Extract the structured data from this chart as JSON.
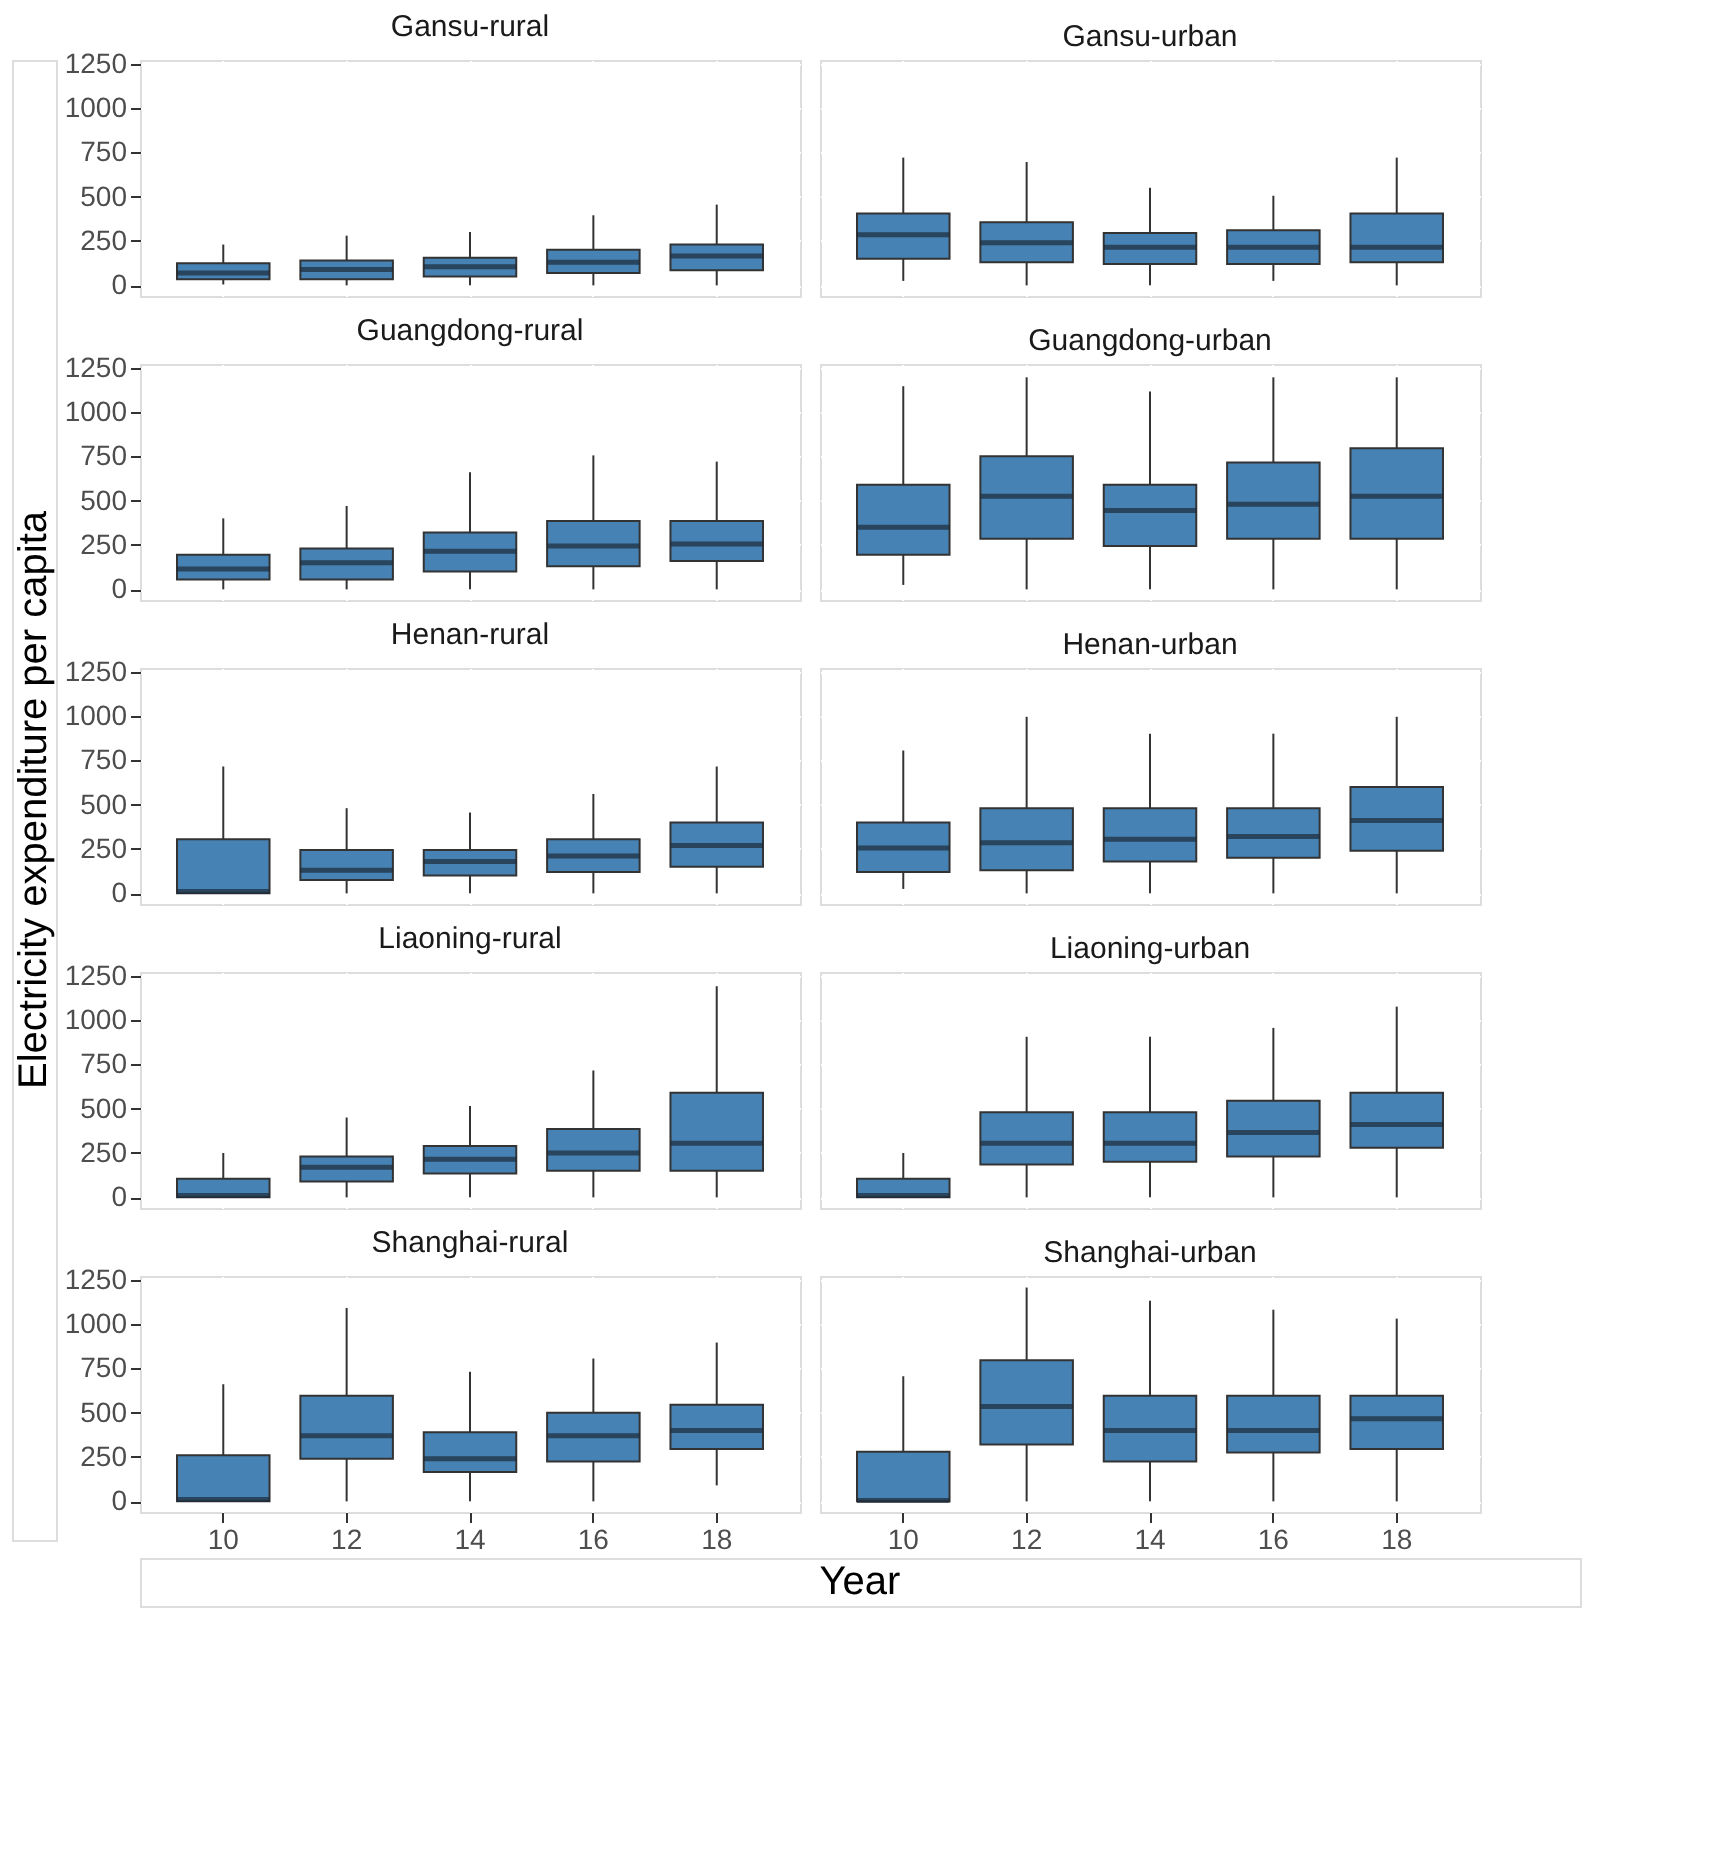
{
  "chart_data": [
    {
      "type": "box",
      "title": "Gansu-rural",
      "categories": [
        "10",
        "12",
        "14",
        "16",
        "18"
      ],
      "color": "#4682b4",
      "ylim": [
        -60,
        1270
      ],
      "yticks": [
        0,
        250,
        500,
        750,
        1000,
        1250
      ],
      "grid": true,
      "tick_labels": "y",
      "boxes": [
        {
          "low": 5,
          "q1": 35,
          "median": 70,
          "q3": 125,
          "high": 230
        },
        {
          "low": 0,
          "q1": 35,
          "median": 90,
          "q3": 140,
          "high": 280
        },
        {
          "low": 0,
          "q1": 50,
          "median": 105,
          "q3": 155,
          "high": 300
        },
        {
          "low": 0,
          "q1": 70,
          "median": 130,
          "q3": 200,
          "high": 395
        },
        {
          "low": 0,
          "q1": 85,
          "median": 165,
          "q3": 230,
          "high": 455
        }
      ]
    },
    {
      "type": "box",
      "title": "Gansu-urban",
      "categories": [
        "10",
        "12",
        "14",
        "16",
        "18"
      ],
      "color": "#4682b4",
      "ylim": [
        -60,
        1270
      ],
      "yticks": [
        0,
        250,
        500,
        750,
        1000,
        1250
      ],
      "grid": true,
      "tick_labels": false,
      "boxes": [
        {
          "low": 25,
          "q1": 150,
          "median": 285,
          "q3": 405,
          "high": 720
        },
        {
          "low": 0,
          "q1": 130,
          "median": 240,
          "q3": 355,
          "high": 695
        },
        {
          "low": 0,
          "q1": 120,
          "median": 215,
          "q3": 295,
          "high": 550
        },
        {
          "low": 25,
          "q1": 120,
          "median": 215,
          "q3": 310,
          "high": 505
        },
        {
          "low": 0,
          "q1": 130,
          "median": 215,
          "q3": 405,
          "high": 720
        }
      ]
    },
    {
      "type": "box",
      "title": "Guangdong-rural",
      "categories": [
        "10",
        "12",
        "14",
        "16",
        "18"
      ],
      "color": "#4682b4",
      "ylim": [
        -60,
        1270
      ],
      "yticks": [
        0,
        250,
        500,
        750,
        1000,
        1250
      ],
      "grid": true,
      "tick_labels": "y",
      "boxes": [
        {
          "low": 0,
          "q1": 55,
          "median": 115,
          "q3": 195,
          "high": 400
        },
        {
          "low": 0,
          "q1": 55,
          "median": 150,
          "q3": 230,
          "high": 470
        },
        {
          "low": 0,
          "q1": 100,
          "median": 215,
          "q3": 320,
          "high": 660
        },
        {
          "low": 0,
          "q1": 130,
          "median": 245,
          "q3": 385,
          "high": 755
        },
        {
          "low": 0,
          "q1": 160,
          "median": 255,
          "q3": 385,
          "high": 720
        }
      ]
    },
    {
      "type": "box",
      "title": "Guangdong-urban",
      "categories": [
        "10",
        "12",
        "14",
        "16",
        "18"
      ],
      "color": "#4682b4",
      "ylim": [
        -60,
        1270
      ],
      "yticks": [
        0,
        250,
        500,
        750,
        1000,
        1250
      ],
      "grid": true,
      "tick_labels": false,
      "boxes": [
        {
          "low": 25,
          "q1": 195,
          "median": 350,
          "q3": 590,
          "high": 1145
        },
        {
          "low": 0,
          "q1": 285,
          "median": 525,
          "q3": 750,
          "high": 1195
        },
        {
          "low": 0,
          "q1": 245,
          "median": 445,
          "q3": 590,
          "high": 1115
        },
        {
          "low": 0,
          "q1": 285,
          "median": 480,
          "q3": 715,
          "high": 1195
        },
        {
          "low": 0,
          "q1": 285,
          "median": 525,
          "q3": 795,
          "high": 1195
        }
      ]
    },
    {
      "type": "box",
      "title": "Henan-rural",
      "ylabel": "Electricity expenditure per capita",
      "categories": [
        "10",
        "12",
        "14",
        "16",
        "18"
      ],
      "color": "#4682b4",
      "ylim": [
        -60,
        1270
      ],
      "yticks": [
        0,
        250,
        500,
        750,
        1000,
        1250
      ],
      "grid": true,
      "tick_labels": "y",
      "boxes": [
        {
          "low": 0,
          "q1": 0,
          "median": 10,
          "q3": 305,
          "high": 715
        },
        {
          "low": 0,
          "q1": 75,
          "median": 130,
          "q3": 245,
          "high": 480
        },
        {
          "low": 0,
          "q1": 100,
          "median": 180,
          "q3": 245,
          "high": 455
        },
        {
          "low": 0,
          "q1": 120,
          "median": 210,
          "q3": 305,
          "high": 560
        },
        {
          "low": 0,
          "q1": 150,
          "median": 270,
          "q3": 400,
          "high": 715
        }
      ]
    },
    {
      "type": "box",
      "title": "Henan-urban",
      "categories": [
        "10",
        "12",
        "14",
        "16",
        "18"
      ],
      "color": "#4682b4",
      "ylim": [
        -60,
        1270
      ],
      "yticks": [
        0,
        250,
        500,
        750,
        1000,
        1250
      ],
      "grid": true,
      "tick_labels": false,
      "boxes": [
        {
          "low": 25,
          "q1": 120,
          "median": 255,
          "q3": 400,
          "high": 805
        },
        {
          "low": 0,
          "q1": 130,
          "median": 285,
          "q3": 480,
          "high": 995
        },
        {
          "low": 0,
          "q1": 180,
          "median": 305,
          "q3": 480,
          "high": 900
        },
        {
          "low": 0,
          "q1": 200,
          "median": 320,
          "q3": 480,
          "high": 900
        },
        {
          "low": 0,
          "q1": 240,
          "median": 410,
          "q3": 600,
          "high": 995
        }
      ]
    },
    {
      "type": "box",
      "title": "Liaoning-rural",
      "categories": [
        "10",
        "12",
        "14",
        "16",
        "18"
      ],
      "color": "#4682b4",
      "ylim": [
        -60,
        1270
      ],
      "yticks": [
        0,
        250,
        500,
        750,
        1000,
        1250
      ],
      "grid": true,
      "tick_labels": "y",
      "boxes": [
        {
          "low": 0,
          "q1": 0,
          "median": 10,
          "q3": 105,
          "high": 250
        },
        {
          "low": 0,
          "q1": 90,
          "median": 170,
          "q3": 230,
          "high": 450
        },
        {
          "low": 0,
          "q1": 135,
          "median": 215,
          "q3": 290,
          "high": 515
        },
        {
          "low": 0,
          "q1": 150,
          "median": 250,
          "q3": 385,
          "high": 715
        },
        {
          "low": 0,
          "q1": 150,
          "median": 305,
          "q3": 590,
          "high": 1190
        }
      ]
    },
    {
      "type": "box",
      "title": "Liaoning-urban",
      "categories": [
        "10",
        "12",
        "14",
        "16",
        "18"
      ],
      "color": "#4682b4",
      "ylim": [
        -60,
        1270
      ],
      "yticks": [
        0,
        250,
        500,
        750,
        1000,
        1250
      ],
      "grid": true,
      "tick_labels": false,
      "boxes": [
        {
          "low": 0,
          "q1": 0,
          "median": 10,
          "q3": 105,
          "high": 250
        },
        {
          "low": 0,
          "q1": 185,
          "median": 305,
          "q3": 480,
          "high": 905
        },
        {
          "low": 0,
          "q1": 200,
          "median": 305,
          "q3": 480,
          "high": 905
        },
        {
          "low": 0,
          "q1": 230,
          "median": 365,
          "q3": 545,
          "high": 955
        },
        {
          "low": 0,
          "q1": 280,
          "median": 410,
          "q3": 590,
          "high": 1075
        }
      ]
    },
    {
      "type": "box",
      "title": "Shanghai-rural",
      "xlabel": "Year",
      "categories": [
        "10",
        "12",
        "14",
        "16",
        "18"
      ],
      "color": "#4682b4",
      "ylim": [
        -60,
        1270
      ],
      "yticks": [
        0,
        250,
        500,
        750,
        1000,
        1250
      ],
      "grid": true,
      "boxes": [
        {
          "low": 0,
          "q1": 0,
          "median": 10,
          "q3": 260,
          "high": 660
        },
        {
          "low": 0,
          "q1": 240,
          "median": 370,
          "q3": 595,
          "high": 1090
        },
        {
          "low": 0,
          "q1": 165,
          "median": 240,
          "q3": 390,
          "high": 730
        },
        {
          "low": 0,
          "q1": 225,
          "median": 370,
          "q3": 500,
          "high": 805
        },
        {
          "low": 90,
          "q1": 295,
          "median": 400,
          "q3": 545,
          "high": 895
        }
      ]
    },
    {
      "type": "box",
      "title": "Shanghai-urban",
      "categories": [
        "10",
        "12",
        "14",
        "16",
        "18"
      ],
      "color": "#4682b4",
      "ylim": [
        -60,
        1270
      ],
      "yticks": [
        0,
        250,
        500,
        750,
        1000,
        1250
      ],
      "grid": true,
      "tick_labels": "x",
      "boxes": [
        {
          "low": 0,
          "q1": 0,
          "median": 5,
          "q3": 280,
          "high": 705
        },
        {
          "low": 0,
          "q1": 320,
          "median": 535,
          "q3": 795,
          "high": 1205
        },
        {
          "low": 0,
          "q1": 225,
          "median": 400,
          "q3": 595,
          "high": 1130
        },
        {
          "low": 0,
          "q1": 275,
          "median": 400,
          "q3": 595,
          "high": 1080
        },
        {
          "low": 0,
          "q1": 295,
          "median": 465,
          "q3": 595,
          "high": 1030
        }
      ]
    }
  ]
}
